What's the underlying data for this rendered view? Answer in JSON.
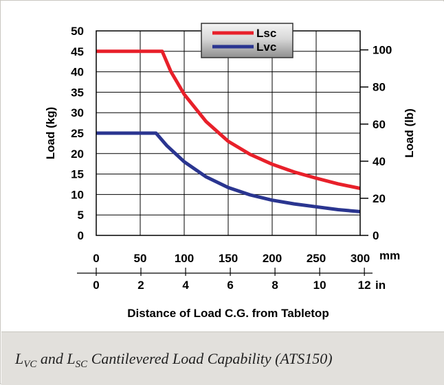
{
  "chart_data": {
    "type": "line",
    "xlabel": "Distance of Load C.G. from Tabletop",
    "x_unit_mm": "mm",
    "x_unit_in": "in",
    "ylabel_left": "Load (kg)",
    "ylabel_right": "Load (lb)",
    "xlim_mm": [
      0,
      300
    ],
    "ylim_kg": [
      0,
      50
    ],
    "ylim_lb": [
      0,
      110.23
    ],
    "grid": true,
    "legend_position": "top-center",
    "x_ticks_mm": [
      "0",
      "50",
      "100",
      "150",
      "200",
      "250",
      "300"
    ],
    "x_ticks_in": [
      "0",
      "2",
      "4",
      "6",
      "8",
      "10",
      "12"
    ],
    "y_ticks_kg": [
      "0",
      "5",
      "10",
      "15",
      "20",
      "25",
      "30",
      "35",
      "40",
      "45",
      "50"
    ],
    "y_ticks_lb": [
      "0",
      "20",
      "40",
      "60",
      "80",
      "100"
    ],
    "series": [
      {
        "name": "Lsc",
        "color": "#e8202a",
        "x": [
          0,
          50,
          75,
          85,
          100,
          125,
          150,
          175,
          200,
          225,
          250,
          275,
          300
        ],
        "y": [
          45,
          45,
          45,
          40,
          34.5,
          27.8,
          23,
          19.8,
          17.4,
          15.5,
          14.0,
          12.6,
          11.5
        ]
      },
      {
        "name": "Lvc",
        "color": "#2a3590",
        "x": [
          0,
          50,
          68,
          80,
          100,
          125,
          150,
          175,
          200,
          225,
          250,
          275,
          300
        ],
        "y": [
          25,
          25,
          25,
          22,
          18,
          14.3,
          11.7,
          9.9,
          8.6,
          7.7,
          7.0,
          6.3,
          5.8
        ]
      }
    ]
  },
  "caption": {
    "l1": "L",
    "s1": "VC",
    "mid": " and L",
    "s2": "SC",
    "rest": " Cantilevered Load Capability (ATS150)"
  }
}
